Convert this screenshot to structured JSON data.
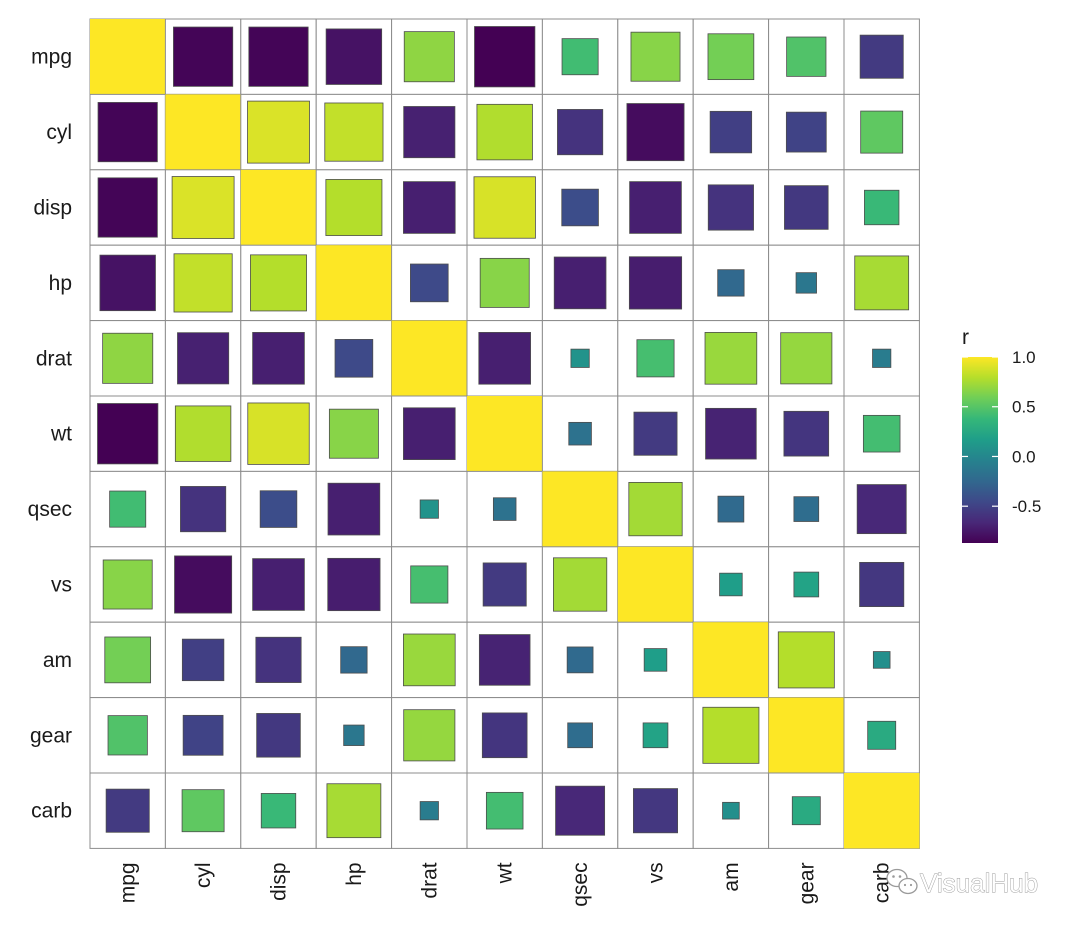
{
  "chart_data": {
    "type": "heatmap",
    "title": "",
    "variables": [
      "mpg",
      "cyl",
      "disp",
      "hp",
      "drat",
      "wt",
      "qsec",
      "vs",
      "am",
      "gear",
      "carb"
    ],
    "matrix": [
      [
        1.0,
        -0.85,
        -0.85,
        -0.78,
        0.68,
        -0.87,
        0.42,
        0.66,
        0.6,
        0.48,
        -0.55
      ],
      [
        -0.85,
        1.0,
        0.9,
        0.83,
        -0.7,
        0.78,
        -0.59,
        -0.81,
        -0.52,
        -0.49,
        0.53
      ],
      [
        -0.85,
        0.9,
        1.0,
        0.79,
        -0.71,
        0.89,
        -0.43,
        -0.71,
        -0.59,
        -0.56,
        0.39
      ],
      [
        -0.78,
        0.83,
        0.79,
        1.0,
        -0.45,
        0.66,
        -0.71,
        -0.72,
        -0.24,
        -0.13,
        0.75
      ],
      [
        0.68,
        -0.7,
        -0.71,
        -0.45,
        1.0,
        -0.71,
        0.09,
        0.44,
        0.71,
        0.7,
        -0.09
      ],
      [
        -0.87,
        0.78,
        0.89,
        0.66,
        -0.71,
        1.0,
        -0.17,
        -0.55,
        -0.69,
        -0.58,
        0.43
      ],
      [
        0.42,
        -0.59,
        -0.43,
        -0.71,
        0.09,
        -0.17,
        1.0,
        0.74,
        -0.23,
        -0.21,
        -0.66
      ],
      [
        0.66,
        -0.81,
        -0.71,
        -0.72,
        0.44,
        -0.55,
        0.74,
        1.0,
        0.17,
        0.21,
        -0.57
      ],
      [
        0.6,
        -0.52,
        -0.59,
        -0.24,
        0.71,
        -0.69,
        -0.23,
        0.17,
        1.0,
        0.79,
        0.06
      ],
      [
        0.48,
        -0.49,
        -0.56,
        -0.13,
        0.7,
        -0.58,
        -0.21,
        0.21,
        0.79,
        1.0,
        0.27
      ],
      [
        -0.55,
        0.53,
        0.39,
        0.75,
        -0.09,
        0.43,
        -0.66,
        -0.57,
        0.06,
        0.27,
        1.0
      ]
    ],
    "legend": {
      "title": "r",
      "position": "right",
      "ticks": [
        1.0,
        0.5,
        0.0,
        -0.5
      ],
      "tick_labels": [
        "1.0",
        "0.5",
        "0.0",
        "-0.5"
      ],
      "range": [
        -0.87,
        1.0
      ],
      "colormap": "viridis"
    },
    "xlabel": "",
    "ylabel": ""
  },
  "colors": {
    "cell_border": "#8c8c8c",
    "tile_border": "#4d4d4d",
    "viridis": [
      "#440154",
      "#482878",
      "#3e4989",
      "#31688e",
      "#26828e",
      "#1f9e89",
      "#35b779",
      "#6ece58",
      "#b5de2b",
      "#fde725"
    ]
  },
  "watermark": {
    "text": "VisualHub",
    "icon": "wechat-icon"
  }
}
